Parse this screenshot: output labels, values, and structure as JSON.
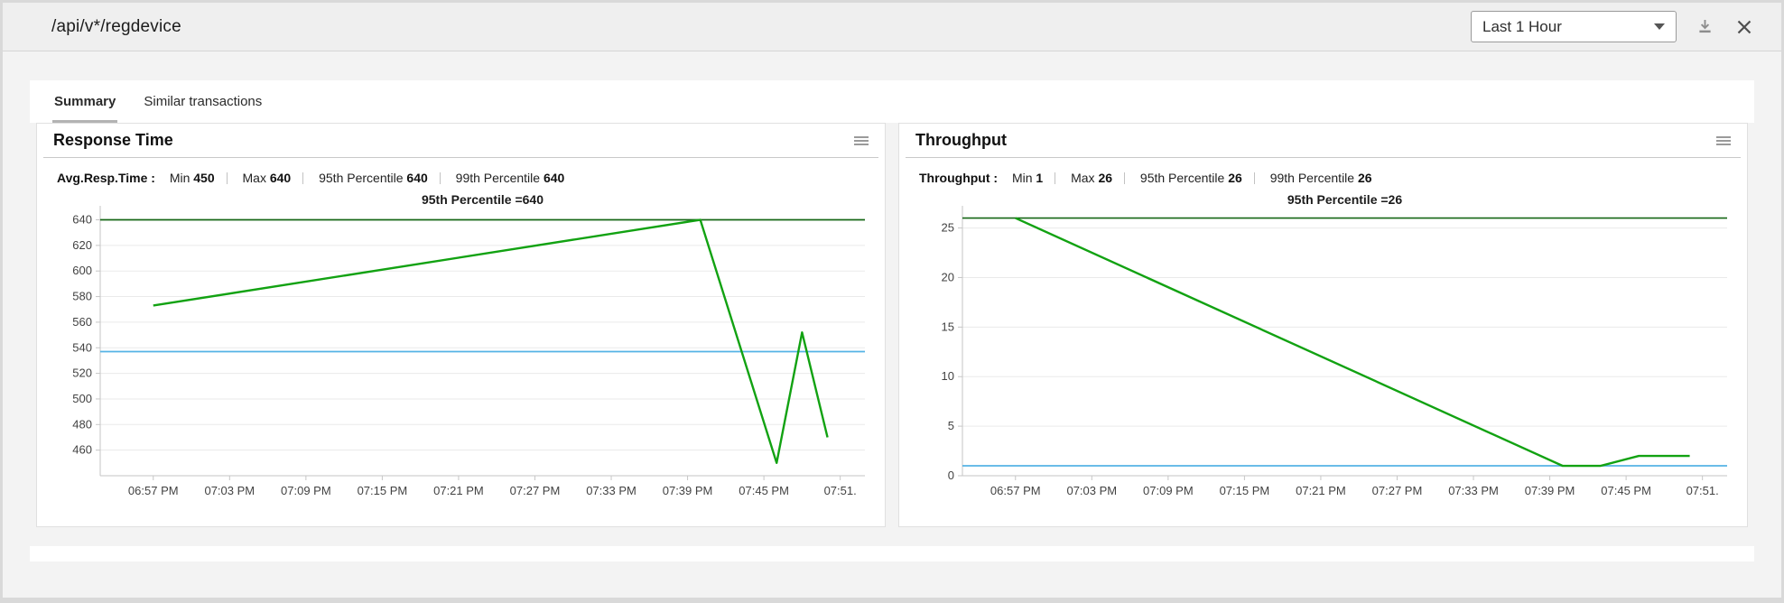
{
  "header": {
    "title": "/api/v*/regdevice",
    "time_range_value": "Last 1 Hour"
  },
  "tabs": [
    {
      "label": "Summary",
      "active": true
    },
    {
      "label": "Similar transactions",
      "active": false
    }
  ],
  "icons": {
    "chevron_down": "chevron-down-icon",
    "download": "download-icon",
    "close": "close-icon",
    "chart_menu": "chart-menu-icon"
  },
  "colors": {
    "series_green": "#12a212",
    "percentile_green": "#156615",
    "average_blue": "#55b3e5",
    "grid": "#eaeaea",
    "axis": "#c6c6c6"
  },
  "charts": [
    {
      "title": "Response Time",
      "stats_label": "Avg.Resp.Time :",
      "stats": [
        {
          "label": "Min",
          "value": "450"
        },
        {
          "label": "Max",
          "value": "640"
        },
        {
          "label": "95th Percentile",
          "value": "640"
        },
        {
          "label": "99th Percentile",
          "value": "640"
        }
      ]
    },
    {
      "title": "Throughput",
      "stats_label": "Throughput :",
      "stats": [
        {
          "label": "Min",
          "value": "1"
        },
        {
          "label": "Max",
          "value": "26"
        },
        {
          "label": "95th Percentile",
          "value": "26"
        },
        {
          "label": "99th Percentile",
          "value": "26"
        }
      ]
    }
  ],
  "chart_data": [
    {
      "type": "line",
      "title": "Response Time",
      "annotation": "95th Percentile =640",
      "x_ticks": [
        "06:57 PM",
        "07:03 PM",
        "07:09 PM",
        "07:15 PM",
        "07:21 PM",
        "07:27 PM",
        "07:33 PM",
        "07:39 PM",
        "07:45 PM",
        "07:51."
      ],
      "y_ticks": [
        460,
        480,
        500,
        520,
        540,
        560,
        580,
        600,
        620,
        640
      ],
      "ylim": [
        440,
        646
      ],
      "grid": true,
      "legend": false,
      "series": [
        {
          "name": "response_time_ms",
          "color": "#12a212",
          "points": [
            {
              "time": "06:57 PM",
              "value": 573
            },
            {
              "time": "07:40 PM",
              "value": 640
            },
            {
              "time": "07:46 PM",
              "value": 450
            },
            {
              "time": "07:48 PM",
              "value": 552
            },
            {
              "time": "07:50 PM",
              "value": 470
            }
          ]
        }
      ],
      "reference_lines": [
        {
          "name": "95th_percentile",
          "value": 640,
          "color": "#156615"
        },
        {
          "name": "average",
          "value": 537,
          "color": "#55b3e5"
        }
      ]
    },
    {
      "type": "line",
      "title": "Throughput",
      "annotation": "95th Percentile =26",
      "x_ticks": [
        "06:57 PM",
        "07:03 PM",
        "07:09 PM",
        "07:15 PM",
        "07:21 PM",
        "07:27 PM",
        "07:33 PM",
        "07:39 PM",
        "07:45 PM",
        "07:51."
      ],
      "y_ticks": [
        0,
        5,
        10,
        15,
        20,
        25
      ],
      "ylim": [
        0,
        26.6
      ],
      "grid": true,
      "legend": false,
      "series": [
        {
          "name": "throughput_rpm",
          "color": "#12a212",
          "points": [
            {
              "time": "06:57 PM",
              "value": 26
            },
            {
              "time": "07:40 PM",
              "value": 1
            },
            {
              "time": "07:43 PM",
              "value": 1
            },
            {
              "time": "07:46 PM",
              "value": 2
            },
            {
              "time": "07:50 PM",
              "value": 2
            }
          ]
        }
      ],
      "reference_lines": [
        {
          "name": "95th_percentile",
          "value": 26,
          "color": "#156615"
        },
        {
          "name": "average",
          "value": 1,
          "color": "#55b3e5"
        }
      ]
    }
  ]
}
